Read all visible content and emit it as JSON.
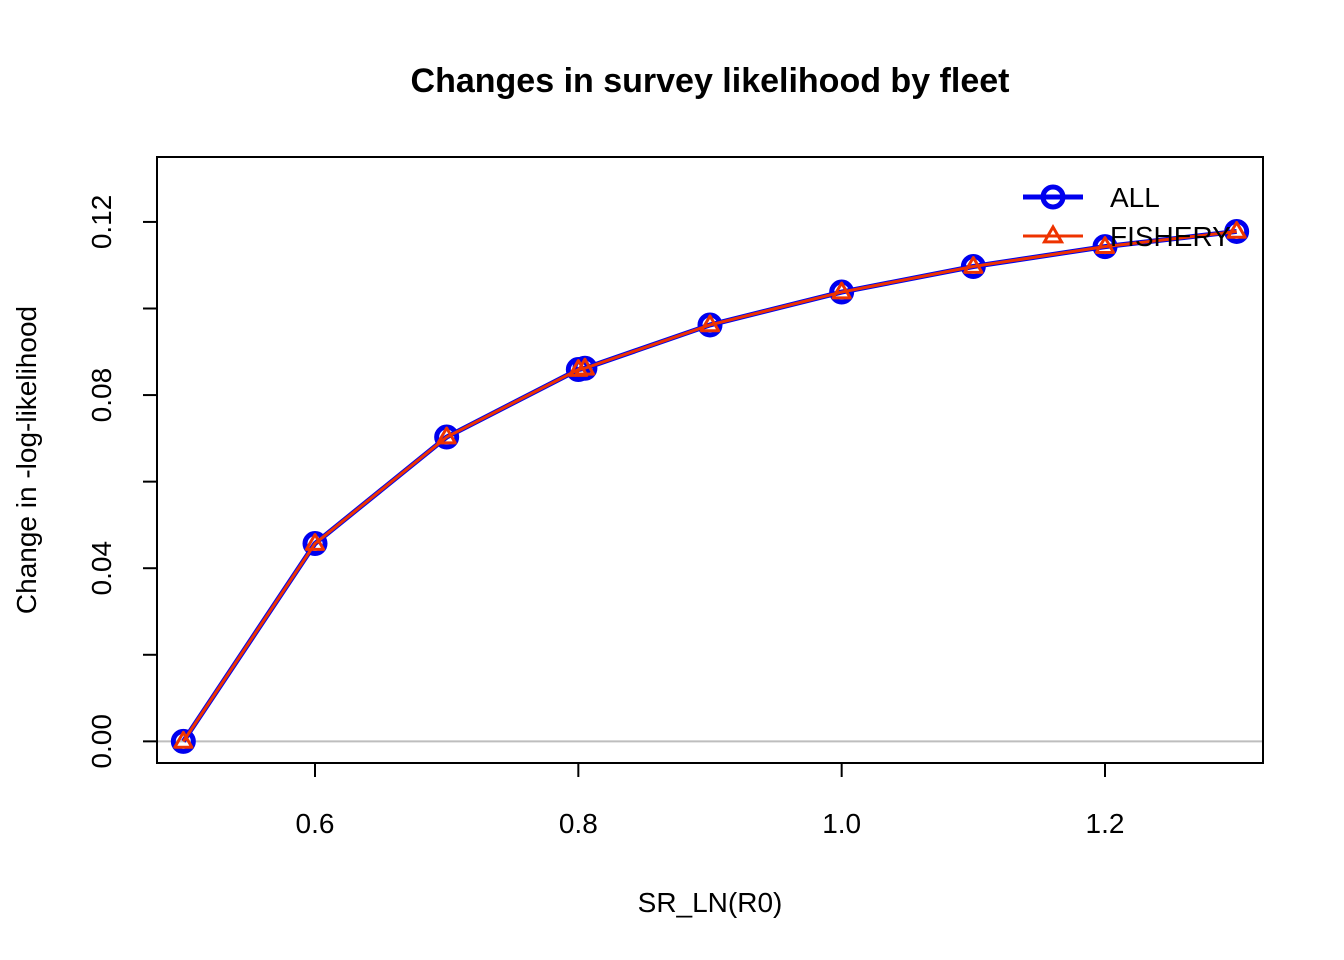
{
  "chart_data": {
    "type": "line",
    "title": "Changes in survey likelihood by fleet",
    "xlabel": "SR_LN(R0)",
    "ylabel": "Change in -log-likelihood",
    "xlim": [
      0.48,
      1.32
    ],
    "ylim": [
      -0.005,
      0.135
    ],
    "x_ticks": [
      0.6,
      0.8,
      1.0,
      1.2
    ],
    "x_tick_labels": [
      "0.6",
      "0.8",
      "1.0",
      "1.2"
    ],
    "y_ticks": [
      0.0,
      0.02,
      0.04,
      0.06,
      0.08,
      0.1,
      0.12
    ],
    "y_tick_labels": [
      "0.00",
      "",
      "0.04",
      "",
      "0.08",
      "",
      "0.12"
    ],
    "reference_line": 0,
    "legend_position": "top-right",
    "x": [
      0.5,
      0.6,
      0.7,
      0.8,
      0.805,
      0.9,
      1.0,
      1.1,
      1.2,
      1.3
    ],
    "series": [
      {
        "name": "ALL",
        "color": "#0000ee",
        "marker": "circle",
        "values": [
          0.0,
          0.0457,
          0.0703,
          0.0859,
          0.0862,
          0.0962,
          0.1038,
          0.1097,
          0.1143,
          0.1178
        ]
      },
      {
        "name": "FISHERY",
        "color": "#ee3300",
        "marker": "triangle",
        "values": [
          0.0,
          0.0457,
          0.0703,
          0.0859,
          0.0862,
          0.0962,
          0.1038,
          0.1097,
          0.1143,
          0.1178
        ]
      }
    ]
  }
}
